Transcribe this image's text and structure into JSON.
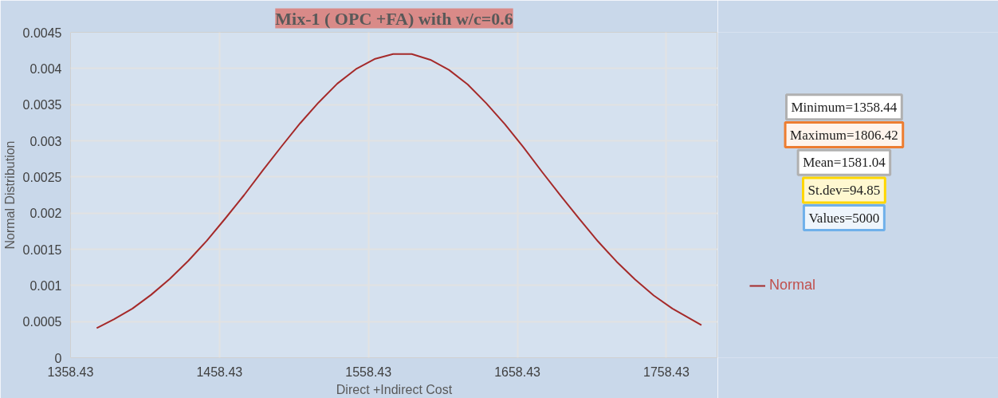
{
  "chart_data": {
    "type": "line",
    "title": "Mix-1 ( OPC +FA) with w/c=0.6",
    "xlabel": "Direct +Indirect Cost",
    "ylabel": "Normal Distribution",
    "x": [
      1376,
      1387.5,
      1400,
      1412.5,
      1425,
      1437.5,
      1450,
      1462.5,
      1475,
      1487.5,
      1500,
      1512.5,
      1525,
      1537.5,
      1550,
      1562.5,
      1575,
      1587.5,
      1600,
      1612.5,
      1625,
      1637.5,
      1650,
      1662.5,
      1675,
      1687.5,
      1700,
      1712.5,
      1725,
      1737.5,
      1750,
      1762.5,
      1782
    ],
    "series": [
      {
        "name": "Normal",
        "color": "#a52a2a",
        "values": [
          0.00041,
          0.00053,
          0.00068,
          0.00087,
          0.00109,
          0.00134,
          0.00162,
          0.00193,
          0.00225,
          0.00259,
          0.00292,
          0.00324,
          0.00353,
          0.00379,
          0.00399,
          0.00413,
          0.0042,
          0.0042,
          0.00412,
          0.00398,
          0.00378,
          0.00352,
          0.00323,
          0.00291,
          0.00257,
          0.00224,
          0.00192,
          0.00161,
          0.00133,
          0.00108,
          0.00086,
          0.00068,
          0.00045
        ]
      }
    ],
    "xlim": [
      1358.43,
      1793
    ],
    "xticks": [
      1358.43,
      1458.43,
      1558.43,
      1658.43,
      1758.43
    ],
    "ylim": [
      0,
      0.0045
    ],
    "yticks": [
      0,
      0.0005,
      0.001,
      0.0015,
      0.002,
      0.0025,
      0.003,
      0.0035,
      0.004,
      0.0045
    ],
    "annotations": [
      "Minimum=1358.44",
      "Maximum=1806.42",
      "Mean=1581.04",
      "St.dev=94.85",
      "Values=5000"
    ],
    "grid": true,
    "legend": "right",
    "marker": "none",
    "line_style": "solid"
  }
}
